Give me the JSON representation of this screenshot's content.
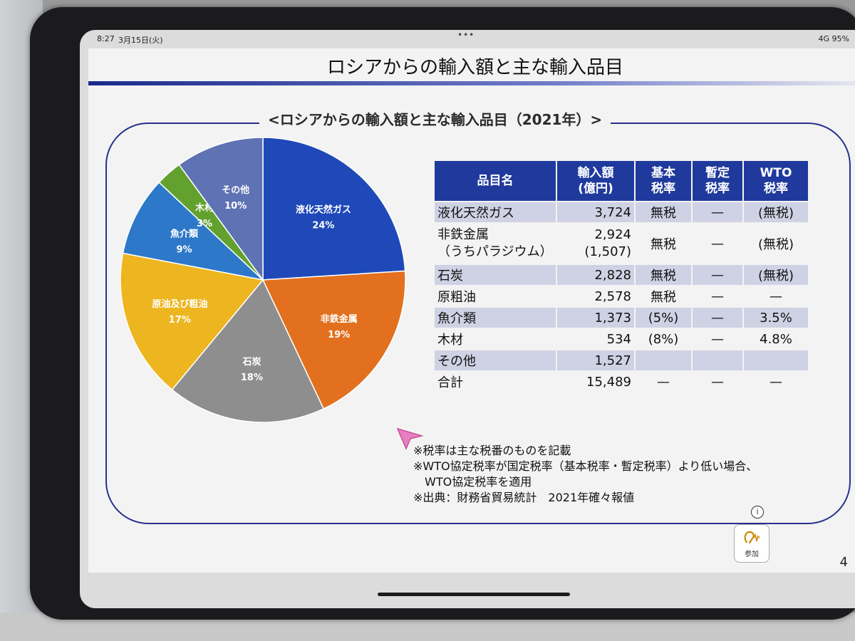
{
  "status_bar": {
    "time": "8:27",
    "date": "3月15日(火)",
    "network": "4G 95%"
  },
  "slide": {
    "title": "ロシアからの輸入額と主な輸入品目",
    "panel_title": "<ロシアからの輸入額と主な輸入品目（2021年）>",
    "page_number": "4"
  },
  "chart_data": {
    "type": "pie",
    "slices": [
      {
        "label": "液化天然ガス",
        "value": 24,
        "percent_label": "24%",
        "color": "#1f49b8"
      },
      {
        "label": "非鉄金属",
        "value": 19,
        "percent_label": "19%",
        "color": "#e2701e"
      },
      {
        "label": "石炭",
        "value": 18,
        "percent_label": "18%",
        "color": "#8e8e8e"
      },
      {
        "label": "原油及び粗油",
        "value": 17,
        "percent_label": "17%",
        "color": "#edb51f"
      },
      {
        "label": "魚介類",
        "value": 9,
        "percent_label": "9%",
        "color": "#2d78c8"
      },
      {
        "label": "木材",
        "value": 3,
        "percent_label": "3%",
        "color": "#63a12f"
      },
      {
        "label": "その他",
        "value": 10,
        "percent_label": "10%",
        "color": "#5e72b4"
      }
    ]
  },
  "table": {
    "headers": [
      {
        "line1": "品目名",
        "line2": ""
      },
      {
        "line1": "輸入額",
        "line2": "(億円)"
      },
      {
        "line1": "基本",
        "line2": "税率"
      },
      {
        "line1": "暫定",
        "line2": "税率"
      },
      {
        "line1": "WTO",
        "line2": "税率"
      }
    ],
    "rows": [
      {
        "item": "液化天然ガス",
        "item2": "",
        "amount": "3,724",
        "amount2": "",
        "basic": "無税",
        "provisional": "—",
        "wto": "(無税)"
      },
      {
        "item": "非鉄金属",
        "item2": "（うちパラジウム）",
        "amount": "2,924",
        "amount2": "(1,507)",
        "basic": "無税",
        "provisional": "—",
        "wto": "(無税)"
      },
      {
        "item": "石炭",
        "item2": "",
        "amount": "2,828",
        "amount2": "",
        "basic": "無税",
        "provisional": "—",
        "wto": "(無税)"
      },
      {
        "item": "原粗油",
        "item2": "",
        "amount": "2,578",
        "amount2": "",
        "basic": "無税",
        "provisional": "—",
        "wto": "—"
      },
      {
        "item": "魚介類",
        "item2": "",
        "amount": "1,373",
        "amount2": "",
        "basic": "(5%)",
        "provisional": "—",
        "wto": "3.5%"
      },
      {
        "item": "木材",
        "item2": "",
        "amount": "534",
        "amount2": "",
        "basic": "(8%)",
        "provisional": "—",
        "wto": "4.8%"
      },
      {
        "item": "その他",
        "item2": "",
        "amount": "1,527",
        "amount2": "",
        "basic": "",
        "provisional": "",
        "wto": ""
      },
      {
        "item": "合計",
        "item2": "",
        "amount": "15,489",
        "amount2": "",
        "basic": "—",
        "provisional": "—",
        "wto": "—"
      }
    ]
  },
  "notes": [
    "※税率は主な税番のものを記載",
    "※WTO協定税率が国定税率（基本税率・暫定税率）より低い場合、",
    "　WTO協定税率を適用",
    "※出典：財務省貿易統計　2021年確々報値"
  ],
  "join_button": {
    "label": "参加",
    "info": "i"
  }
}
